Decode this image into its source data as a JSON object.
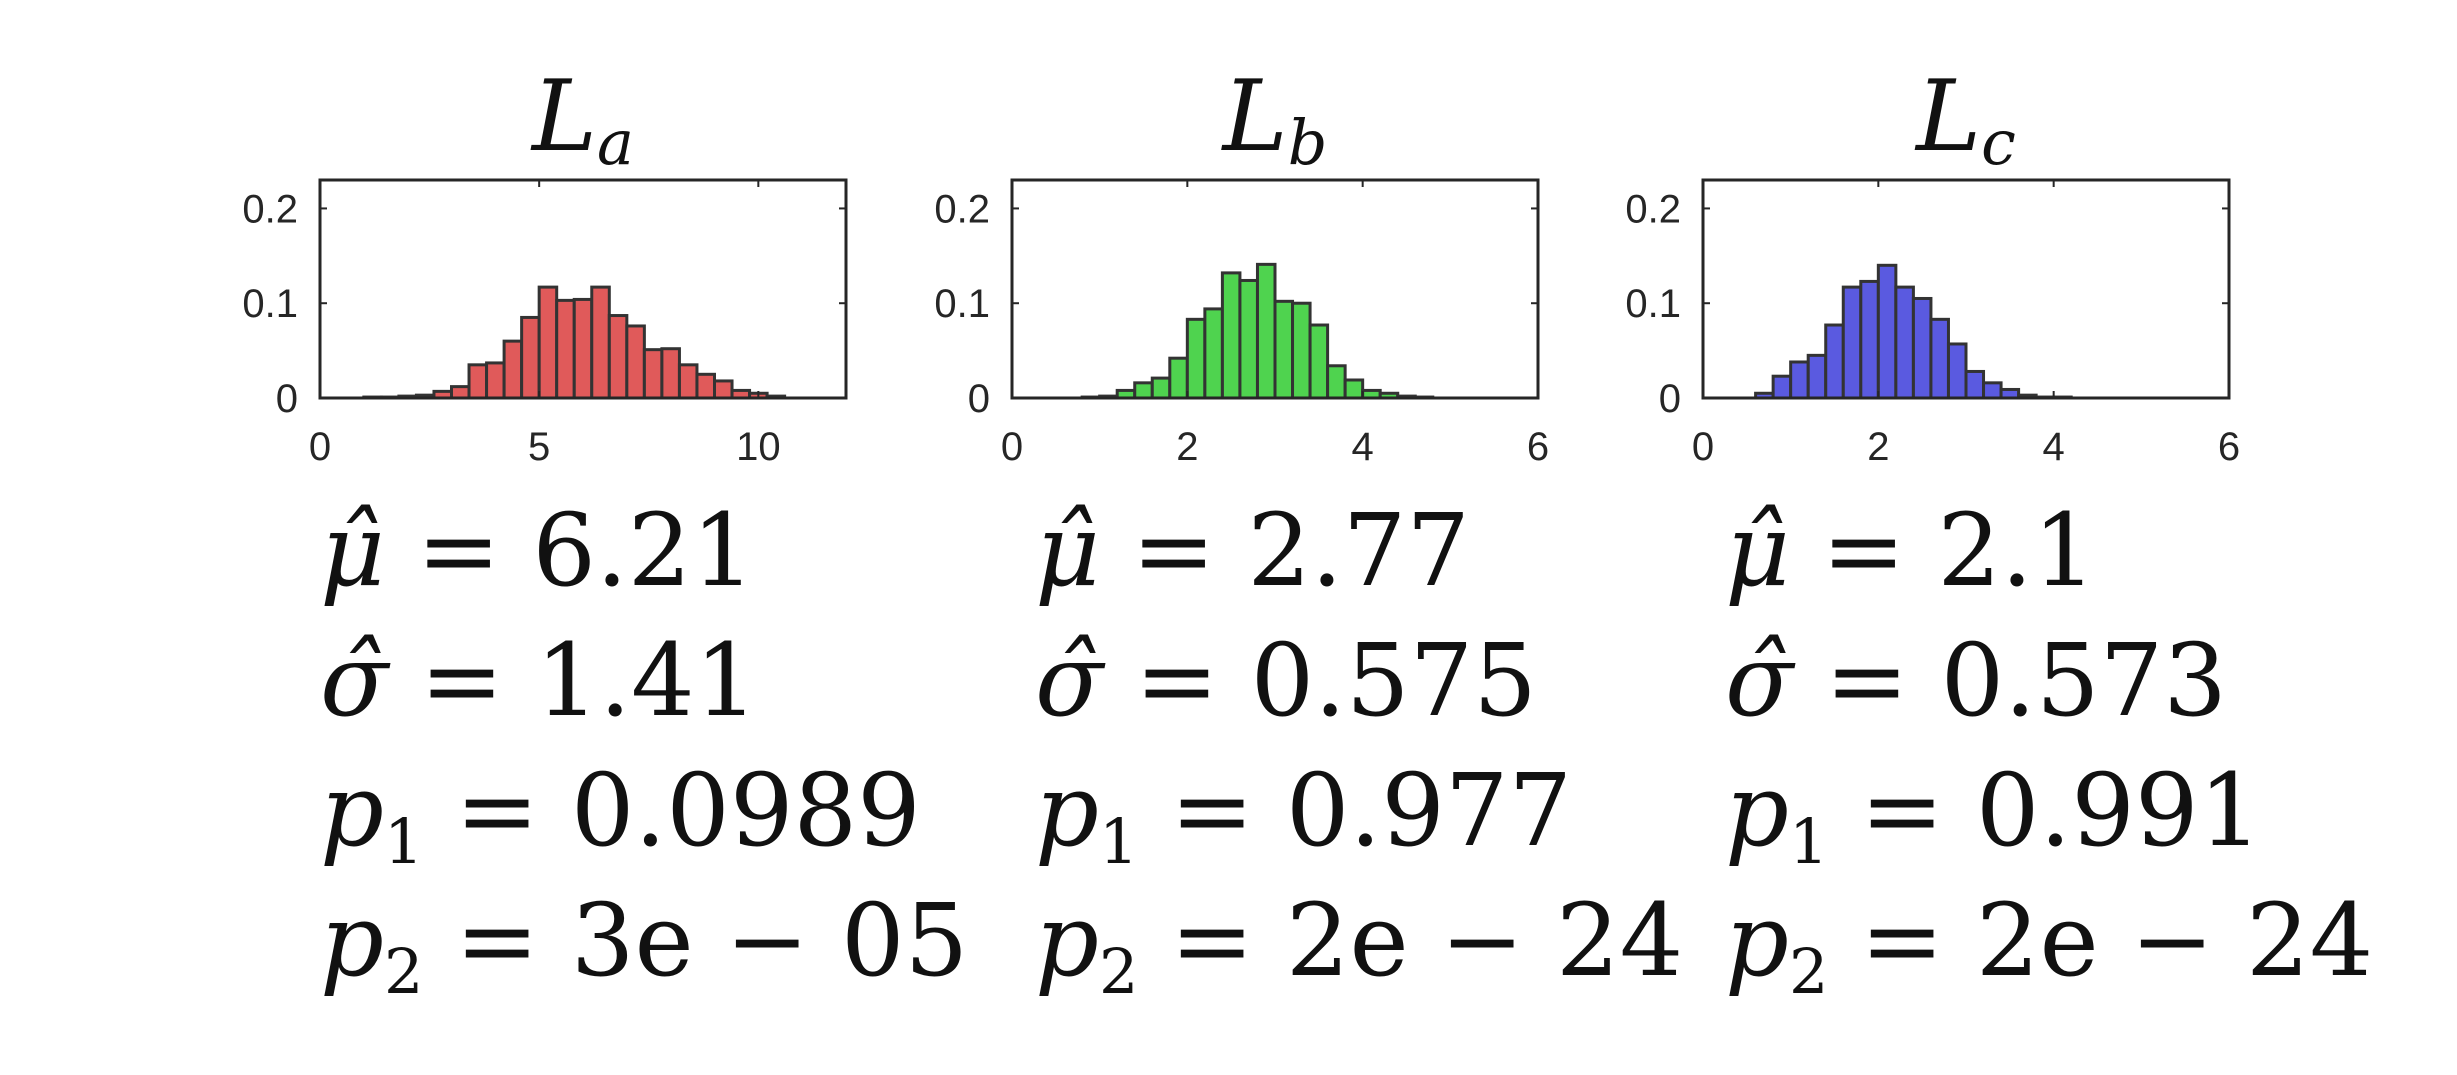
{
  "chart_data": [
    {
      "type": "bar",
      "title": "L_a",
      "title_main": "L",
      "title_sub": "a",
      "color": "#e05a5a",
      "edge_color": "#333333",
      "xlim": [
        0,
        12
      ],
      "ylim": [
        0,
        0.23
      ],
      "xticks": [
        0,
        5,
        10
      ],
      "yticks": [
        0,
        0.1,
        0.2
      ],
      "xtick_labels": [
        "0",
        "5",
        "10"
      ],
      "ytick_labels": [
        "0",
        "0.1",
        "0.2"
      ],
      "bin_edges": [
        1.0,
        1.4,
        1.8,
        2.2,
        2.6,
        3.0,
        3.4,
        3.8,
        4.2,
        4.6,
        5.0,
        5.4,
        5.8,
        6.2,
        6.6,
        7.0,
        7.4,
        7.8,
        8.2,
        8.6,
        9.0,
        9.4,
        9.8,
        10.2,
        10.6
      ],
      "values": [
        0.001,
        0.001,
        0.002,
        0.003,
        0.007,
        0.012,
        0.035,
        0.037,
        0.06,
        0.085,
        0.117,
        0.103,
        0.104,
        0.117,
        0.087,
        0.076,
        0.051,
        0.052,
        0.035,
        0.025,
        0.018,
        0.008,
        0.005,
        0.002
      ],
      "stats": {
        "mu": {
          "symbol": "μ̂",
          "sub": "",
          "eq": " = ",
          "value": "6.21"
        },
        "sigma": {
          "symbol": "σ̂",
          "sub": "",
          "eq": " = ",
          "value": "1.41"
        },
        "p1": {
          "symbol": "p",
          "sub": "1",
          "eq": " = ",
          "value": "0.0989"
        },
        "p2": {
          "symbol": "p",
          "sub": "2",
          "eq": " = ",
          "value": "3e − 05"
        }
      }
    },
    {
      "type": "bar",
      "title": "L_b",
      "title_main": "L",
      "title_sub": "b",
      "color": "#4fd34f",
      "edge_color": "#333333",
      "xlim": [
        0,
        6
      ],
      "ylim": [
        0,
        0.23
      ],
      "xticks": [
        0,
        2,
        4,
        6
      ],
      "yticks": [
        0,
        0.1,
        0.2
      ],
      "xtick_labels": [
        "0",
        "2",
        "4",
        "6"
      ],
      "ytick_labels": [
        "0",
        "0.1",
        "0.2"
      ],
      "bin_edges": [
        0.8,
        1.0,
        1.2,
        1.4,
        1.6,
        1.8,
        2.0,
        2.2,
        2.4,
        2.6,
        2.8,
        3.0,
        3.2,
        3.4,
        3.6,
        3.8,
        4.0,
        4.2,
        4.4,
        4.6,
        4.8
      ],
      "values": [
        0.001,
        0.002,
        0.008,
        0.016,
        0.021,
        0.042,
        0.083,
        0.094,
        0.132,
        0.124,
        0.141,
        0.102,
        0.1,
        0.077,
        0.034,
        0.019,
        0.008,
        0.005,
        0.002,
        0.001
      ],
      "stats": {
        "mu": {
          "symbol": "μ̂",
          "sub": "",
          "eq": " = ",
          "value": "2.77"
        },
        "sigma": {
          "symbol": "σ̂",
          "sub": "",
          "eq": " = ",
          "value": "0.575"
        },
        "p1": {
          "symbol": "p",
          "sub": "1",
          "eq": " = ",
          "value": "0.977"
        },
        "p2": {
          "symbol": "p",
          "sub": "2",
          "eq": " = ",
          "value": "2e − 24"
        }
      }
    },
    {
      "type": "bar",
      "title": "L_c",
      "title_main": "L",
      "title_sub": "c",
      "color": "#5a5ae0",
      "edge_color": "#333333",
      "xlim": [
        0,
        6
      ],
      "ylim": [
        0,
        0.23
      ],
      "xticks": [
        0,
        2,
        4,
        6
      ],
      "yticks": [
        0,
        0.1,
        0.2
      ],
      "xtick_labels": [
        "0",
        "2",
        "4",
        "6"
      ],
      "ytick_labels": [
        "0",
        "0.1",
        "0.2"
      ],
      "bin_edges": [
        0.6,
        0.8,
        1.0,
        1.2,
        1.4,
        1.6,
        1.8,
        2.0,
        2.2,
        2.4,
        2.6,
        2.8,
        3.0,
        3.2,
        3.4,
        3.6,
        3.8,
        4.0,
        4.2
      ],
      "values": [
        0.005,
        0.023,
        0.038,
        0.045,
        0.077,
        0.117,
        0.123,
        0.14,
        0.117,
        0.105,
        0.083,
        0.057,
        0.028,
        0.016,
        0.009,
        0.003,
        0.001,
        0.001
      ],
      "stats": {
        "mu": {
          "symbol": "μ̂",
          "sub": "",
          "eq": " = ",
          "value": "2.1"
        },
        "sigma": {
          "symbol": "σ̂",
          "sub": "",
          "eq": " = ",
          "value": "0.573"
        },
        "p1": {
          "symbol": "p",
          "sub": "1",
          "eq": " = ",
          "value": "0.991"
        },
        "p2": {
          "symbol": "p",
          "sub": "2",
          "eq": " = ",
          "value": "2e − 24"
        }
      }
    }
  ]
}
